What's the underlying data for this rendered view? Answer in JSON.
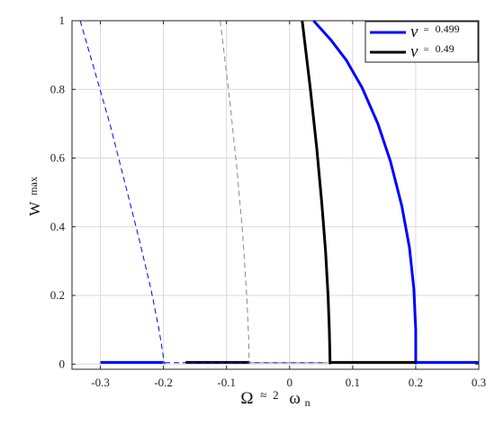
{
  "chart_data": {
    "type": "line",
    "title": "",
    "xlabel": {
      "main": "Ω",
      "approx": "≈",
      "two": "2",
      "omega": "ω",
      "sub": "n"
    },
    "ylabel": {
      "main": "W",
      "sub": "max"
    },
    "xlim": [
      -0.345,
      0.3
    ],
    "ylim": [
      -0.015,
      1.0
    ],
    "xticks": [
      -0.3,
      -0.2,
      -0.1,
      0,
      0.1,
      0.2,
      0.3
    ],
    "xtick_labels": [
      "-0.3",
      "-0.2",
      "-0.1",
      "0",
      "0.1",
      "0.2",
      "0.3"
    ],
    "yticks": [
      0,
      0.2,
      0.4,
      0.6,
      0.8,
      1
    ],
    "ytick_labels": [
      "0",
      "0.2",
      "0.4",
      "0.6",
      "0.8",
      "1"
    ],
    "grid": true,
    "legend_position": "top-right",
    "series": [
      {
        "name": "0.499",
        "legend_symbol": "ν",
        "legend_eq": "=",
        "color": "#0000ff",
        "style": "solid",
        "segments": [
          {
            "x": [
              -0.3,
              -0.2
            ],
            "y": [
              0.005,
              0.005
            ]
          },
          {
            "x": [
              0.2,
              0.3
            ],
            "y": [
              0.005,
              0.005
            ]
          },
          {
            "x": [
              0.2,
              0.2
            ],
            "y": [
              0.005,
              0.0
            ]
          },
          {
            "x": [
              0.038,
              0.065,
              0.09,
              0.115,
              0.14,
              0.16,
              0.178,
              0.19,
              0.197,
              0.2,
              0.2
            ],
            "y": [
              1.0,
              0.945,
              0.885,
              0.805,
              0.7,
              0.59,
              0.46,
              0.34,
              0.22,
              0.1,
              0.0
            ]
          }
        ]
      },
      {
        "name": "0.49",
        "legend_symbol": "ν",
        "legend_eq": "=",
        "color": "#000000",
        "style": "solid",
        "segments": [
          {
            "x": [
              -0.165,
              -0.063
            ],
            "y": [
              0.005,
              0.005
            ]
          },
          {
            "x": [
              0.064,
              0.2
            ],
            "y": [
              0.005,
              0.005
            ]
          },
          {
            "x": [
              0.02,
              0.033,
              0.043,
              0.051,
              0.057,
              0.061,
              0.063,
              0.064,
              0.064
            ],
            "y": [
              1.0,
              0.8,
              0.63,
              0.47,
              0.33,
              0.2,
              0.1,
              0.02,
              0.0
            ]
          }
        ]
      },
      {
        "color": "#0000ff",
        "style": "dashed",
        "segments": [
          {
            "x": [
              -0.332,
              -0.31,
              -0.285,
              -0.26,
              -0.238,
              -0.22,
              -0.207,
              -0.2,
              -0.198
            ],
            "y": [
              1.0,
              0.86,
              0.7,
              0.52,
              0.36,
              0.22,
              0.1,
              0.02,
              0.0
            ]
          },
          {
            "x": [
              -0.198,
              0.06
            ],
            "y": [
              0.004,
              0.004
            ]
          }
        ]
      },
      {
        "color": "#888888",
        "style": "dashed",
        "segments": [
          {
            "x": [
              -0.11,
              -0.095,
              -0.083,
              -0.074,
              -0.068,
              -0.065,
              -0.064
            ],
            "y": [
              1.0,
              0.77,
              0.56,
              0.37,
              0.2,
              0.08,
              0.0
            ]
          },
          {
            "x": [
              -0.063,
              0.06
            ],
            "y": [
              0.004,
              0.004
            ]
          }
        ]
      }
    ]
  }
}
